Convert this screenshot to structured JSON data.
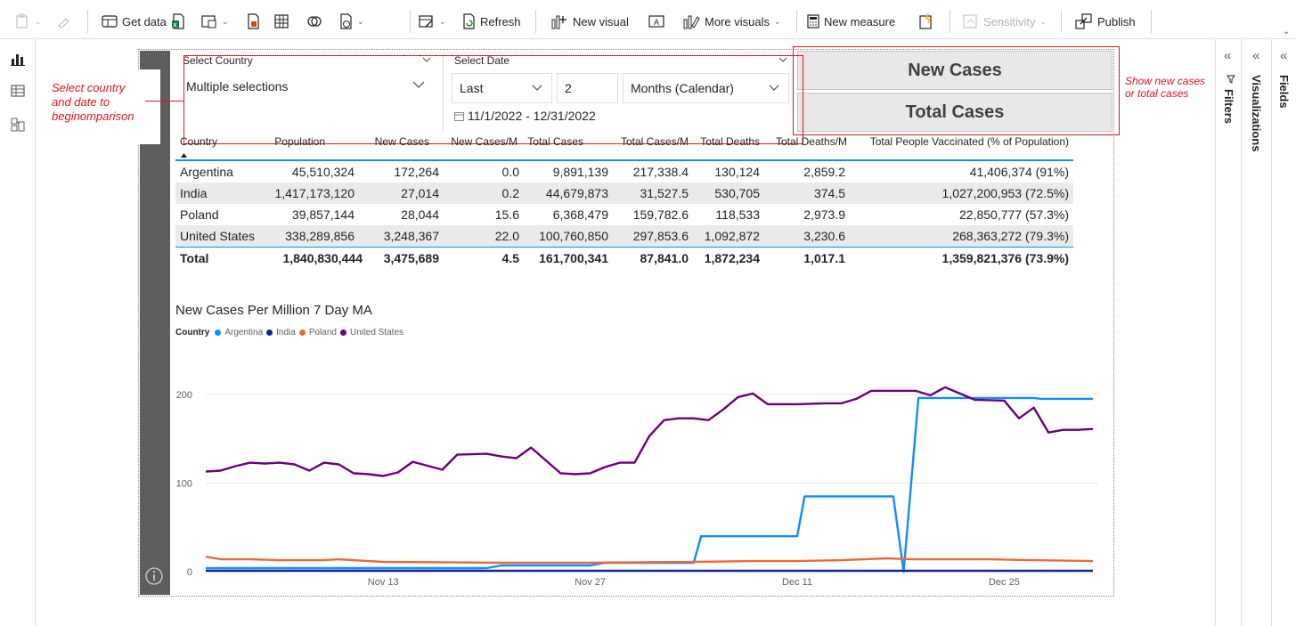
{
  "ribbon": {
    "get_data": "Get data",
    "refresh": "Refresh",
    "new_visual": "New visual",
    "more_visuals": "More visuals",
    "new_measure": "New measure",
    "sensitivity": "Sensitivity",
    "publish": "Publish"
  },
  "panes": {
    "filters": "Filters",
    "visualizations": "Visualizations",
    "fields": "Fields"
  },
  "annotations": {
    "left_line1": "Select country",
    "left_line2": "and date to",
    "left_line3": "beginomparison",
    "right_line1": "Show new cases",
    "right_line2": "or total cases"
  },
  "country_slicer": {
    "label": "Select Country",
    "value": "Multiple selections"
  },
  "date_slicer": {
    "label": "Select Date",
    "mode": "Last",
    "count": "2",
    "period": "Months (Calendar)",
    "range": "11/1/2022 - 12/31/2022"
  },
  "measure_toggle": {
    "option1": "New Cases",
    "option2": "Total Cases"
  },
  "table": {
    "headers": [
      "Country",
      "Population",
      "New Cases",
      "New Cases/M",
      "Total Cases",
      "Total Cases/M",
      "Total Deaths",
      "Total Deaths/M",
      "Total People Vaccinated (% of Population)"
    ],
    "rows": [
      [
        "Argentina",
        "45,510,324",
        "172,264",
        "0.0",
        "9,891,139",
        "217,338.4",
        "130,124",
        "2,859.2",
        "41,406,374 (91%)"
      ],
      [
        "India",
        "1,417,173,120",
        "27,014",
        "0.2",
        "44,679,873",
        "31,527.5",
        "530,705",
        "374.5",
        "1,027,200,953 (72.5%)"
      ],
      [
        "Poland",
        "39,857,144",
        "28,044",
        "15.6",
        "6,368,479",
        "159,782.6",
        "118,533",
        "2,973.9",
        "22,850,777 (57.3%)"
      ],
      [
        "United States",
        "338,289,856",
        "3,248,367",
        "22.0",
        "100,760,850",
        "297,853.6",
        "1,092,872",
        "3,230.6",
        "268,363,272 (79.3%)"
      ]
    ],
    "total": [
      "Total",
      "1,840,830,444",
      "3,475,689",
      "4.5",
      "161,700,341",
      "87,841.0",
      "1,872,234",
      "1,017.1",
      "1,359,821,376 (73.9%)"
    ]
  },
  "chart_data": {
    "type": "line",
    "title": "New Cases Per Million 7 Day MA",
    "legend_title": "Country",
    "xlabel": "",
    "ylabel": "",
    "ylim": [
      0,
      220
    ],
    "xlim": [
      0,
      60
    ],
    "y_ticks": [
      0,
      100,
      200
    ],
    "y_tick_labels": [
      "0",
      "100",
      "200"
    ],
    "x_ticks": [
      12,
      26,
      40,
      54
    ],
    "x_tick_labels": [
      "Nov 13",
      "Nov 27",
      "Dec 11",
      "Dec 25"
    ],
    "series": [
      {
        "name": "Argentina",
        "color": "#118dff",
        "points": [
          [
            0,
            4
          ],
          [
            7,
            4
          ],
          [
            14,
            4
          ],
          [
            19,
            4
          ],
          [
            20,
            7
          ],
          [
            26,
            7
          ],
          [
            27,
            10
          ],
          [
            33,
            10
          ],
          [
            33.5,
            40
          ],
          [
            40,
            40
          ],
          [
            40.5,
            85
          ],
          [
            46.5,
            85
          ],
          [
            47.2,
            0
          ],
          [
            48.2,
            196
          ],
          [
            56,
            196
          ],
          [
            56.5,
            195
          ],
          [
            60,
            195
          ]
        ]
      },
      {
        "name": "India",
        "color": "#12239e",
        "points": [
          [
            0,
            1
          ],
          [
            60,
            1
          ]
        ]
      },
      {
        "name": "Poland",
        "color": "#e66c37",
        "points": [
          [
            0,
            17
          ],
          [
            1,
            14
          ],
          [
            3,
            14
          ],
          [
            5,
            13
          ],
          [
            8,
            13
          ],
          [
            9,
            14
          ],
          [
            11,
            12
          ],
          [
            12,
            11
          ],
          [
            20,
            10
          ],
          [
            26,
            10
          ],
          [
            33,
            11
          ],
          [
            37,
            12
          ],
          [
            40,
            12
          ],
          [
            43,
            13
          ],
          [
            46,
            15
          ],
          [
            48,
            14
          ],
          [
            53,
            14
          ],
          [
            56,
            13
          ],
          [
            60,
            12
          ]
        ]
      },
      {
        "name": "United States",
        "color": "#6b007b",
        "points": [
          [
            0,
            113
          ],
          [
            1,
            114
          ],
          [
            2,
            119
          ],
          [
            3,
            123
          ],
          [
            4,
            122
          ],
          [
            5,
            123
          ],
          [
            6,
            121
          ],
          [
            7,
            114
          ],
          [
            8,
            123
          ],
          [
            9,
            121
          ],
          [
            10,
            111
          ],
          [
            11,
            110
          ],
          [
            12,
            108
          ],
          [
            13,
            112
          ],
          [
            14,
            124
          ],
          [
            16,
            115
          ],
          [
            17,
            132
          ],
          [
            19,
            133
          ],
          [
            20,
            130
          ],
          [
            21,
            128
          ],
          [
            22,
            140
          ],
          [
            24,
            111
          ],
          [
            25,
            110
          ],
          [
            26,
            111
          ],
          [
            27,
            118
          ],
          [
            28,
            123
          ],
          [
            29,
            123
          ],
          [
            30,
            153
          ],
          [
            31,
            171
          ],
          [
            32,
            173
          ],
          [
            33,
            173
          ],
          [
            34,
            171
          ],
          [
            35,
            183
          ],
          [
            36,
            197
          ],
          [
            37,
            201
          ],
          [
            38,
            189
          ],
          [
            40,
            189
          ],
          [
            42,
            190
          ],
          [
            43,
            190
          ],
          [
            44,
            195
          ],
          [
            45,
            204
          ],
          [
            47,
            204
          ],
          [
            48,
            204
          ],
          [
            49,
            199
          ],
          [
            50,
            208
          ],
          [
            52,
            194
          ],
          [
            54,
            193
          ],
          [
            55,
            173
          ],
          [
            56,
            185
          ],
          [
            57,
            157
          ],
          [
            58,
            160
          ],
          [
            59,
            160
          ],
          [
            60,
            161
          ]
        ]
      }
    ]
  }
}
